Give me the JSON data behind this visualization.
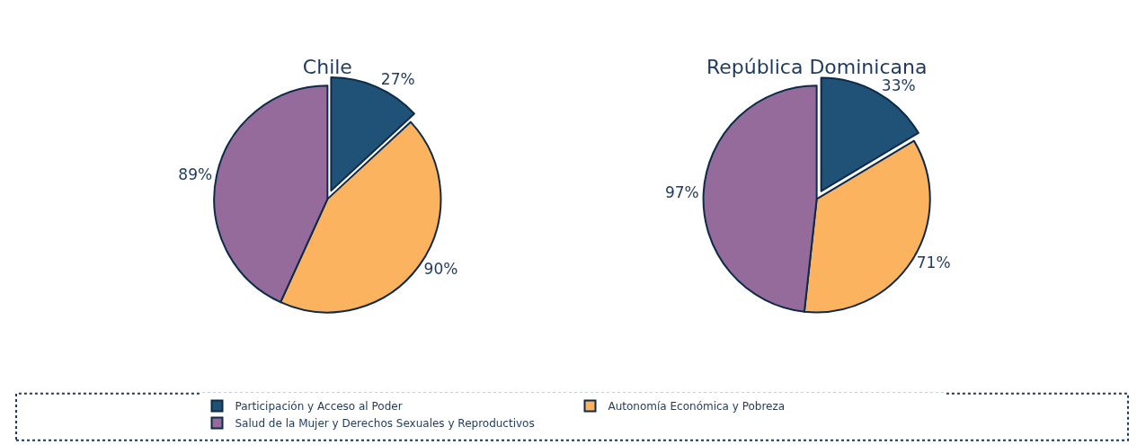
{
  "chart_data": [
    {
      "type": "pie",
      "title": "Chile",
      "categories": [
        "Participación y Acceso al Poder",
        "Autonomía Económica y Pobreza",
        "Salud de la Mujer y Derechos Sexuales y Reproductivos"
      ],
      "values": [
        27,
        90,
        89
      ],
      "value_labels": [
        "27%",
        "90%",
        "89%"
      ],
      "colors": [
        "#1f5276",
        "#fbb360",
        "#946b9b"
      ],
      "legend": "bottom"
    },
    {
      "type": "pie",
      "title": "República Dominicana",
      "categories": [
        null,
        null,
        null
      ],
      "values": [
        33,
        71,
        97
      ],
      "value_labels": [
        "33%",
        "71%",
        "97%"
      ],
      "colors": [
        "#1f5276",
        "#fbb360",
        "#946b9b"
      ]
    }
  ]
}
